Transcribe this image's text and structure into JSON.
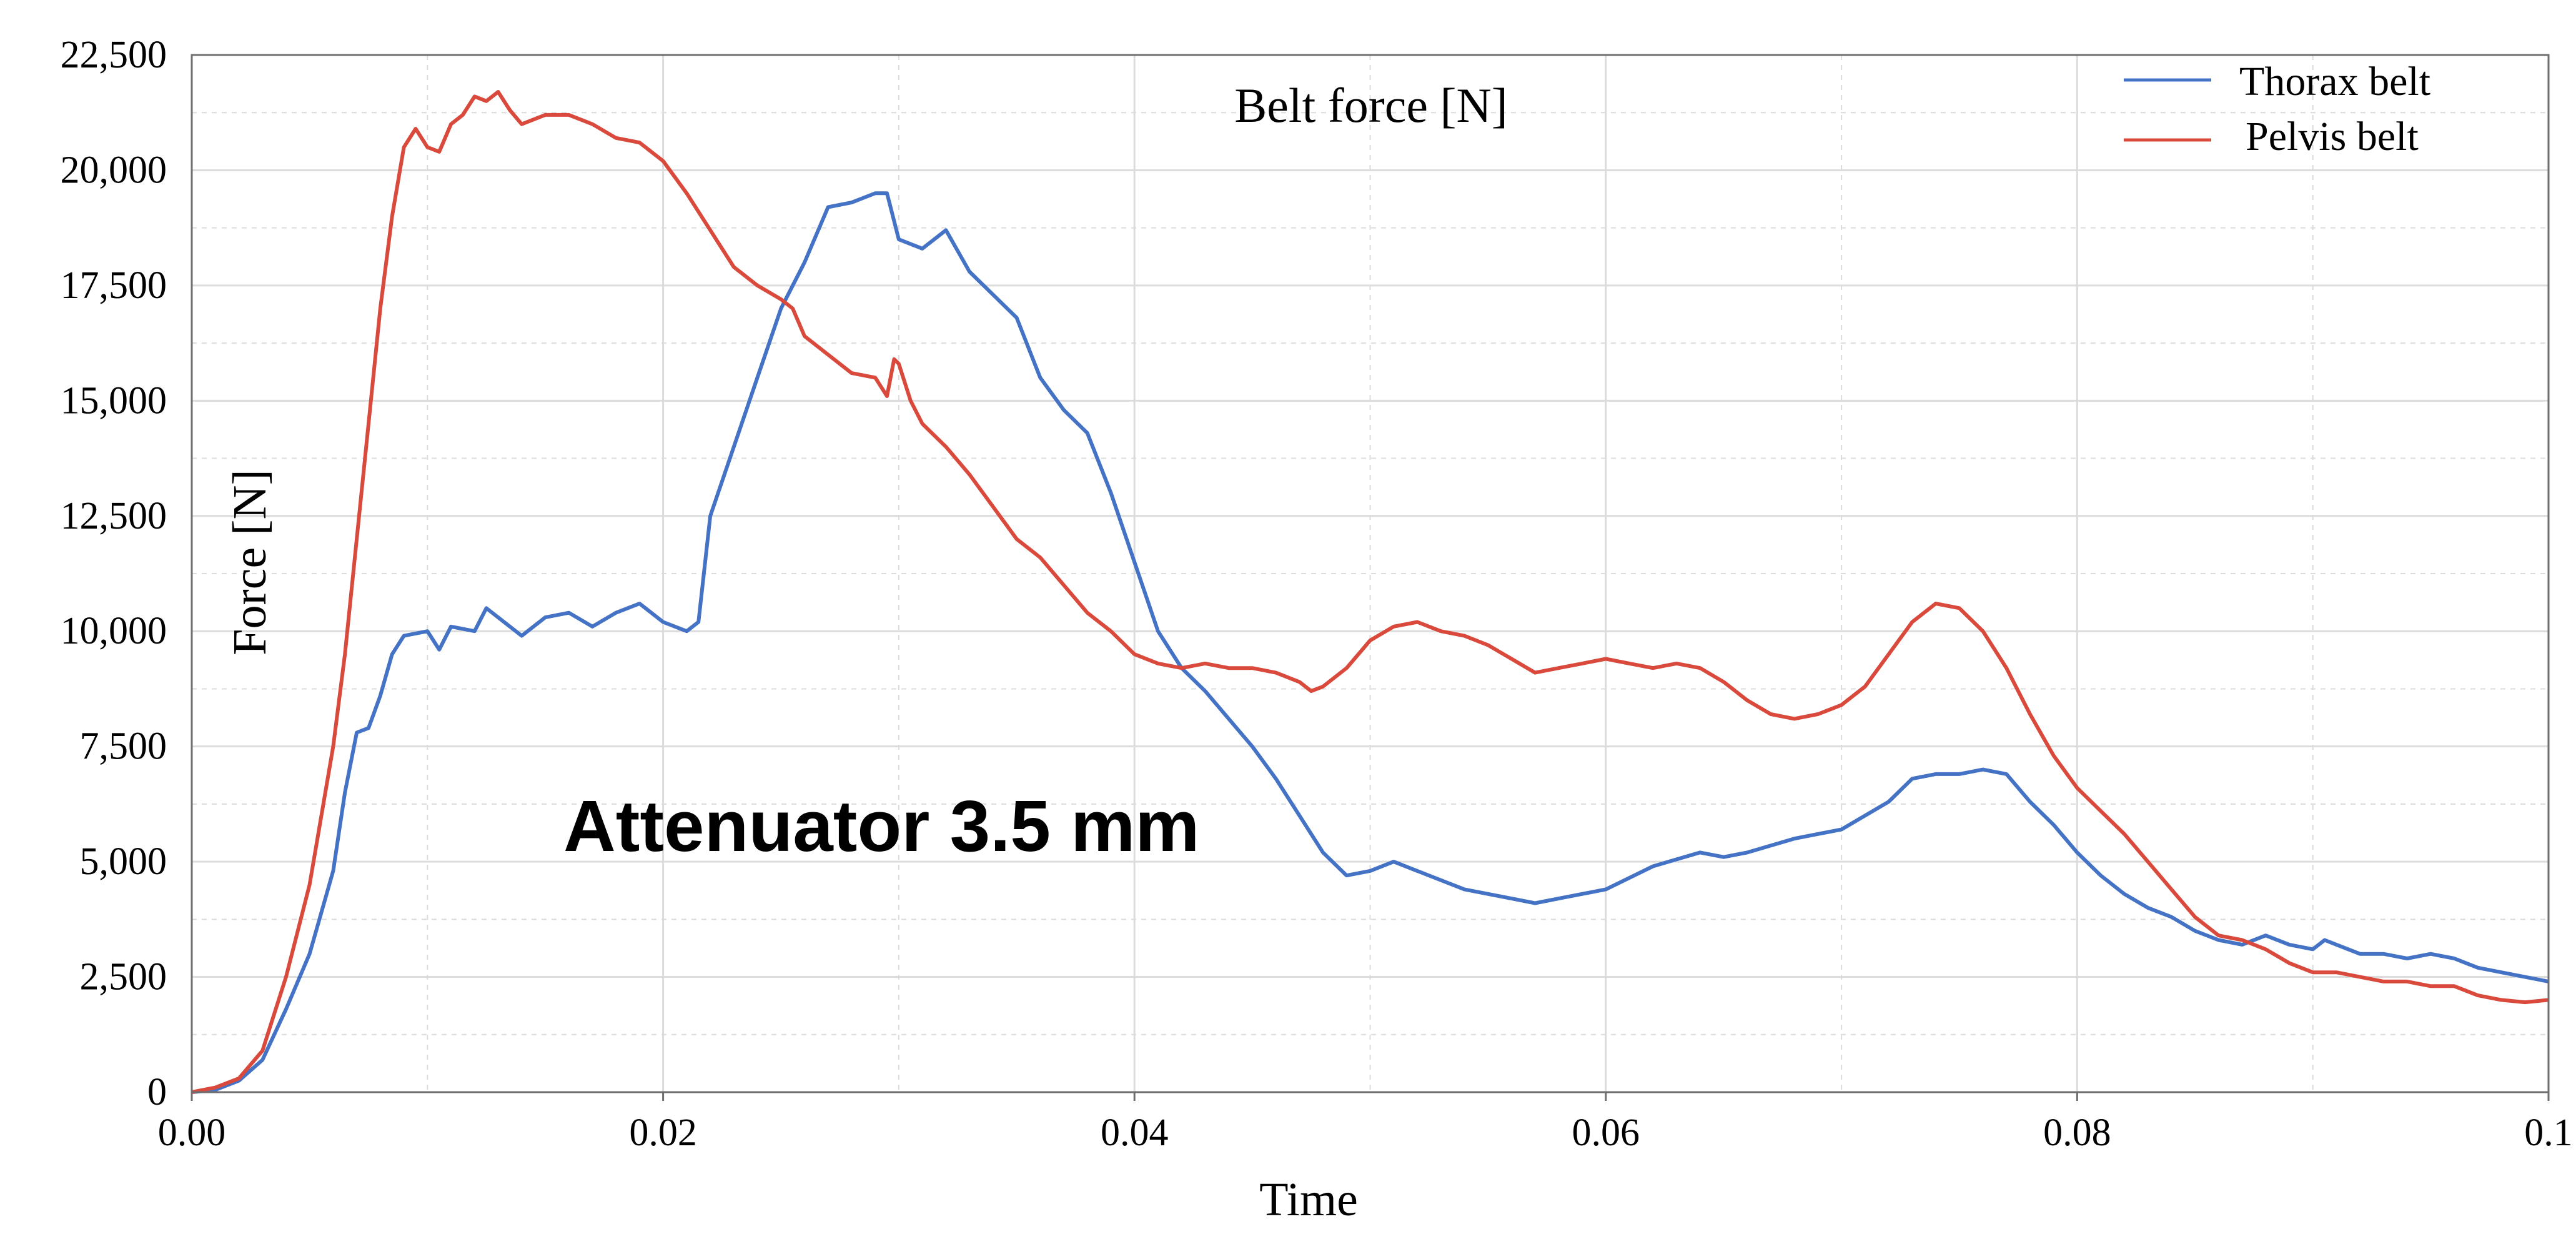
{
  "chart_data": {
    "type": "line",
    "title": "Belt force [N]",
    "xlabel": "Time",
    "ylabel": "Force  [N]",
    "annotation": "Attenuator 3.5 mm",
    "xlim": [
      0,
      0.1
    ],
    "ylim": [
      0,
      22500
    ],
    "x_ticks": [
      0,
      0.02,
      0.04,
      0.06,
      0.08,
      0.1
    ],
    "x_tick_labels": [
      "0.00",
      "0.02",
      "0.04",
      "0.06",
      "0.08",
      "0.1"
    ],
    "y_ticks": [
      0,
      2500,
      5000,
      7500,
      10000,
      12500,
      15000,
      17500,
      20000,
      22500
    ],
    "y_tick_labels": [
      "0",
      "2,500",
      "5,000",
      "7,500",
      "10,000",
      "12,500",
      "15,000",
      "17,500",
      "20,000",
      "22,500"
    ],
    "grid": true,
    "legend_position": "top-right",
    "series": [
      {
        "name": "Thorax belt",
        "color": "#4472C4",
        "points": [
          [
            0.0,
            0
          ],
          [
            0.001,
            50
          ],
          [
            0.002,
            250
          ],
          [
            0.003,
            700
          ],
          [
            0.004,
            1800
          ],
          [
            0.005,
            3000
          ],
          [
            0.006,
            4800
          ],
          [
            0.0065,
            6500
          ],
          [
            0.007,
            7800
          ],
          [
            0.0075,
            7900
          ],
          [
            0.008,
            8600
          ],
          [
            0.0085,
            9500
          ],
          [
            0.009,
            9900
          ],
          [
            0.01,
            10000
          ],
          [
            0.0105,
            9600
          ],
          [
            0.011,
            10100
          ],
          [
            0.012,
            10000
          ],
          [
            0.0125,
            10500
          ],
          [
            0.013,
            10300
          ],
          [
            0.014,
            9900
          ],
          [
            0.015,
            10300
          ],
          [
            0.016,
            10400
          ],
          [
            0.017,
            10100
          ],
          [
            0.018,
            10400
          ],
          [
            0.019,
            10600
          ],
          [
            0.02,
            10200
          ],
          [
            0.021,
            10000
          ],
          [
            0.0215,
            10200
          ],
          [
            0.022,
            12500
          ],
          [
            0.023,
            14000
          ],
          [
            0.024,
            15500
          ],
          [
            0.025,
            17000
          ],
          [
            0.026,
            18000
          ],
          [
            0.027,
            19200
          ],
          [
            0.028,
            19300
          ],
          [
            0.029,
            19500
          ],
          [
            0.0295,
            19500
          ],
          [
            0.03,
            18500
          ],
          [
            0.031,
            18300
          ],
          [
            0.032,
            18700
          ],
          [
            0.033,
            17800
          ],
          [
            0.034,
            17300
          ],
          [
            0.035,
            16800
          ],
          [
            0.036,
            15500
          ],
          [
            0.037,
            14800
          ],
          [
            0.038,
            14300
          ],
          [
            0.039,
            13000
          ],
          [
            0.04,
            11500
          ],
          [
            0.041,
            10000
          ],
          [
            0.042,
            9200
          ],
          [
            0.043,
            8700
          ],
          [
            0.044,
            8100
          ],
          [
            0.045,
            7500
          ],
          [
            0.046,
            6800
          ],
          [
            0.047,
            6000
          ],
          [
            0.048,
            5200
          ],
          [
            0.049,
            4700
          ],
          [
            0.05,
            4800
          ],
          [
            0.051,
            5000
          ],
          [
            0.052,
            4800
          ],
          [
            0.054,
            4400
          ],
          [
            0.056,
            4200
          ],
          [
            0.057,
            4100
          ],
          [
            0.058,
            4200
          ],
          [
            0.06,
            4400
          ],
          [
            0.062,
            4900
          ],
          [
            0.064,
            5200
          ],
          [
            0.065,
            5100
          ],
          [
            0.066,
            5200
          ],
          [
            0.068,
            5500
          ],
          [
            0.07,
            5700
          ],
          [
            0.072,
            6300
          ],
          [
            0.073,
            6800
          ],
          [
            0.074,
            6900
          ],
          [
            0.075,
            6900
          ],
          [
            0.076,
            7000
          ],
          [
            0.077,
            6900
          ],
          [
            0.078,
            6300
          ],
          [
            0.079,
            5800
          ],
          [
            0.08,
            5200
          ],
          [
            0.081,
            4700
          ],
          [
            0.082,
            4300
          ],
          [
            0.083,
            4000
          ],
          [
            0.084,
            3800
          ],
          [
            0.085,
            3500
          ],
          [
            0.086,
            3300
          ],
          [
            0.087,
            3200
          ],
          [
            0.088,
            3400
          ],
          [
            0.089,
            3200
          ],
          [
            0.09,
            3100
          ],
          [
            0.0905,
            3300
          ],
          [
            0.091,
            3200
          ],
          [
            0.092,
            3000
          ],
          [
            0.093,
            3000
          ],
          [
            0.094,
            2900
          ],
          [
            0.095,
            3000
          ],
          [
            0.096,
            2900
          ],
          [
            0.097,
            2700
          ],
          [
            0.098,
            2600
          ],
          [
            0.099,
            2500
          ],
          [
            0.1,
            2400
          ]
        ]
      },
      {
        "name": "Pelvis belt",
        "color": "#D94A3D",
        "points": [
          [
            0.0,
            0
          ],
          [
            0.001,
            100
          ],
          [
            0.002,
            300
          ],
          [
            0.003,
            900
          ],
          [
            0.004,
            2500
          ],
          [
            0.005,
            4500
          ],
          [
            0.006,
            7500
          ],
          [
            0.0065,
            9500
          ],
          [
            0.007,
            12000
          ],
          [
            0.0075,
            14500
          ],
          [
            0.008,
            17000
          ],
          [
            0.0085,
            19000
          ],
          [
            0.009,
            20500
          ],
          [
            0.0095,
            20900
          ],
          [
            0.01,
            20500
          ],
          [
            0.0105,
            20400
          ],
          [
            0.011,
            21000
          ],
          [
            0.0115,
            21200
          ],
          [
            0.012,
            21600
          ],
          [
            0.0125,
            21500
          ],
          [
            0.013,
            21700
          ],
          [
            0.0135,
            21300
          ],
          [
            0.014,
            21000
          ],
          [
            0.015,
            21200
          ],
          [
            0.016,
            21200
          ],
          [
            0.017,
            21000
          ],
          [
            0.018,
            20700
          ],
          [
            0.019,
            20600
          ],
          [
            0.02,
            20200
          ],
          [
            0.021,
            19500
          ],
          [
            0.022,
            18700
          ],
          [
            0.023,
            17900
          ],
          [
            0.024,
            17500
          ],
          [
            0.025,
            17200
          ],
          [
            0.0255,
            17000
          ],
          [
            0.026,
            16400
          ],
          [
            0.027,
            16000
          ],
          [
            0.028,
            15600
          ],
          [
            0.029,
            15500
          ],
          [
            0.0295,
            15100
          ],
          [
            0.0298,
            15900
          ],
          [
            0.03,
            15800
          ],
          [
            0.0305,
            15000
          ],
          [
            0.031,
            14500
          ],
          [
            0.032,
            14000
          ],
          [
            0.033,
            13400
          ],
          [
            0.034,
            12700
          ],
          [
            0.035,
            12000
          ],
          [
            0.036,
            11600
          ],
          [
            0.037,
            11000
          ],
          [
            0.038,
            10400
          ],
          [
            0.039,
            10000
          ],
          [
            0.04,
            9500
          ],
          [
            0.041,
            9300
          ],
          [
            0.042,
            9200
          ],
          [
            0.043,
            9300
          ],
          [
            0.044,
            9200
          ],
          [
            0.045,
            9200
          ],
          [
            0.046,
            9100
          ],
          [
            0.047,
            8900
          ],
          [
            0.0475,
            8700
          ],
          [
            0.048,
            8800
          ],
          [
            0.049,
            9200
          ],
          [
            0.05,
            9800
          ],
          [
            0.051,
            10100
          ],
          [
            0.052,
            10200
          ],
          [
            0.053,
            10000
          ],
          [
            0.054,
            9900
          ],
          [
            0.055,
            9700
          ],
          [
            0.056,
            9400
          ],
          [
            0.057,
            9100
          ],
          [
            0.058,
            9200
          ],
          [
            0.059,
            9300
          ],
          [
            0.06,
            9400
          ],
          [
            0.061,
            9300
          ],
          [
            0.062,
            9200
          ],
          [
            0.063,
            9300
          ],
          [
            0.064,
            9200
          ],
          [
            0.065,
            8900
          ],
          [
            0.066,
            8500
          ],
          [
            0.067,
            8200
          ],
          [
            0.068,
            8100
          ],
          [
            0.069,
            8200
          ],
          [
            0.07,
            8400
          ],
          [
            0.071,
            8800
          ],
          [
            0.072,
            9500
          ],
          [
            0.073,
            10200
          ],
          [
            0.074,
            10600
          ],
          [
            0.075,
            10500
          ],
          [
            0.076,
            10000
          ],
          [
            0.077,
            9200
          ],
          [
            0.078,
            8200
          ],
          [
            0.079,
            7300
          ],
          [
            0.08,
            6600
          ],
          [
            0.081,
            6100
          ],
          [
            0.082,
            5600
          ],
          [
            0.083,
            5000
          ],
          [
            0.084,
            4400
          ],
          [
            0.085,
            3800
          ],
          [
            0.086,
            3400
          ],
          [
            0.087,
            3300
          ],
          [
            0.088,
            3100
          ],
          [
            0.089,
            2800
          ],
          [
            0.09,
            2600
          ],
          [
            0.091,
            2600
          ],
          [
            0.092,
            2500
          ],
          [
            0.093,
            2400
          ],
          [
            0.094,
            2400
          ],
          [
            0.095,
            2300
          ],
          [
            0.096,
            2300
          ],
          [
            0.097,
            2100
          ],
          [
            0.098,
            2000
          ],
          [
            0.099,
            1950
          ],
          [
            0.1,
            2000
          ]
        ]
      }
    ]
  }
}
